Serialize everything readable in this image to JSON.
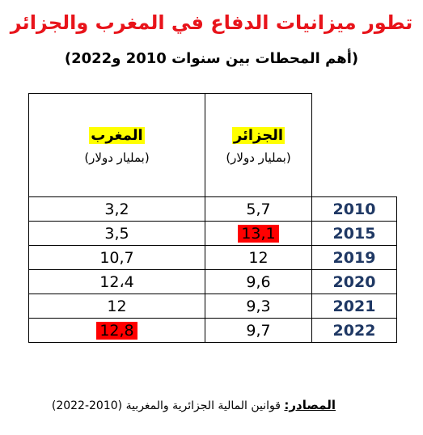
{
  "header": {
    "title": "تطور ميزانيات الدفاع في المغرب والجزائر",
    "subtitle": "(أهم المحطات بين سنوات 2010 و2022)"
  },
  "table": {
    "columns": [
      {
        "name": "المغرب",
        "unit": "(بمليار دولار)"
      },
      {
        "name": "الجزائر",
        "unit": "(بمليار دولار)"
      }
    ],
    "rows": [
      [
        "3,2",
        "5,7",
        "2010"
      ],
      [
        "3,5",
        "13,1",
        "2015"
      ],
      [
        "10,7",
        "12",
        "2019"
      ],
      [
        "12،4",
        "9,6",
        "2020"
      ],
      [
        "12",
        "9,3",
        "2021"
      ],
      [
        "12,8",
        "9,7",
        "2022"
      ]
    ]
  },
  "footer": {
    "label": "المصادر:",
    "text": "قوانين المالية الجزائرية والمغربية (2010-2022)"
  }
}
